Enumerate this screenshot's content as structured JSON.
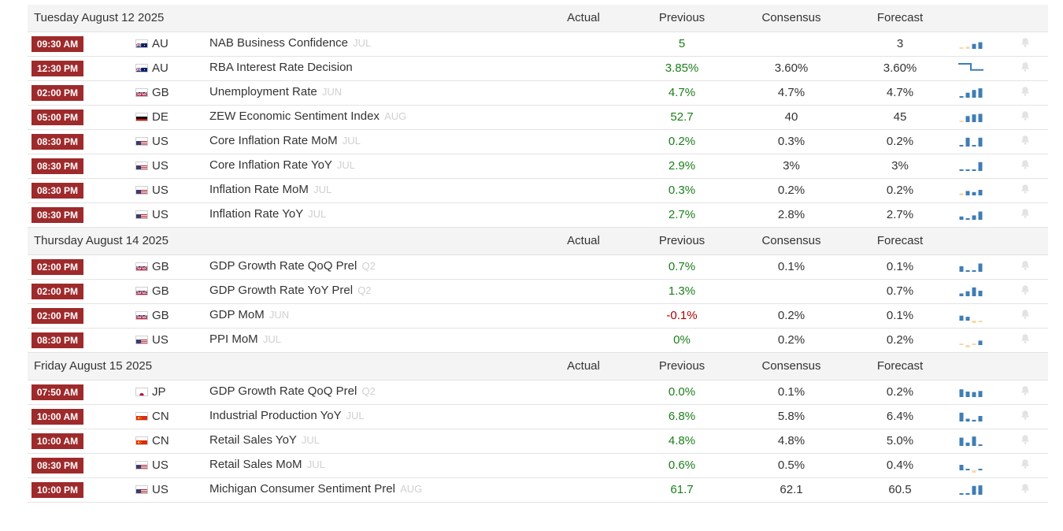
{
  "columns": {
    "actual": "Actual",
    "previous": "Previous",
    "consensus": "Consensus",
    "forecast": "Forecast"
  },
  "colors": {
    "time_badge": "#9e2a2b",
    "positive": "#1a7f1a",
    "negative": "#b00000",
    "bar": "#3f7db5",
    "bar_light": "#f5d9a8"
  },
  "groups": [
    {
      "date": "Tuesday August 12 2025",
      "events": [
        {
          "time": "09:30 AM",
          "flag": "AU",
          "country": "AU",
          "event": "NAB Business Confidence",
          "reference": "JUL",
          "actual": "",
          "previous": "5",
          "previous_sign": "pos",
          "consensus": "",
          "forecast": "3",
          "spark": [
            0.12,
            0.2,
            0.45,
            0.6
          ],
          "spark_colors": [
            "l",
            "l",
            "b",
            "b"
          ],
          "spark_type": "bars"
        },
        {
          "time": "12:30 PM",
          "flag": "AU",
          "country": "AU",
          "event": "RBA Interest Rate Decision",
          "reference": "",
          "actual": "",
          "previous": "3.85%",
          "previous_sign": "pos",
          "consensus": "3.60%",
          "forecast": "3.60%",
          "spark": [
            1,
            1,
            0.35,
            0.35
          ],
          "spark_colors": [
            "b",
            "b",
            "b",
            "b"
          ],
          "spark_type": "step"
        },
        {
          "time": "02:00 PM",
          "flag": "GB",
          "country": "GB",
          "event": "Unemployment Rate",
          "reference": "JUN",
          "actual": "",
          "previous": "4.7%",
          "previous_sign": "pos",
          "consensus": "4.7%",
          "forecast": "4.7%",
          "spark": [
            0.12,
            0.45,
            0.7,
            0.85
          ],
          "spark_colors": [
            "b",
            "b",
            "b",
            "b"
          ],
          "spark_type": "bars"
        },
        {
          "time": "05:00 PM",
          "flag": "DE",
          "country": "DE",
          "event": "ZEW Economic Sentiment Index",
          "reference": "AUG",
          "actual": "",
          "previous": "52.7",
          "previous_sign": "pos",
          "consensus": "40",
          "forecast": "45",
          "spark": [
            0.12,
            0.55,
            0.7,
            0.75
          ],
          "spark_colors": [
            "l",
            "b",
            "b",
            "b"
          ],
          "spark_type": "bars"
        },
        {
          "time": "08:30 PM",
          "flag": "US",
          "country": "US",
          "event": "Core Inflation Rate MoM",
          "reference": "JUL",
          "actual": "",
          "previous": "0.2%",
          "previous_sign": "pos",
          "consensus": "0.3%",
          "forecast": "0.2%",
          "spark": [
            0.1,
            0.8,
            0.1,
            0.8
          ],
          "spark_colors": [
            "b",
            "b",
            "b",
            "b"
          ],
          "spark_type": "bars"
        },
        {
          "time": "08:30 PM",
          "flag": "US",
          "country": "US",
          "event": "Core Inflation Rate YoY",
          "reference": "JUL",
          "actual": "",
          "previous": "2.9%",
          "previous_sign": "pos",
          "consensus": "3%",
          "forecast": "3%",
          "spark": [
            0.08,
            0.08,
            0.08,
            0.8
          ],
          "spark_colors": [
            "b",
            "b",
            "b",
            "b"
          ],
          "spark_type": "bars"
        },
        {
          "time": "08:30 PM",
          "flag": "US",
          "country": "US",
          "event": "Inflation Rate MoM",
          "reference": "JUL",
          "actual": "",
          "previous": "0.3%",
          "previous_sign": "pos",
          "consensus": "0.2%",
          "forecast": "0.2%",
          "spark": [
            0.2,
            0.4,
            0.3,
            0.5
          ],
          "spark_colors": [
            "l",
            "b",
            "b",
            "b"
          ],
          "spark_type": "bars"
        },
        {
          "time": "08:30 PM",
          "flag": "US",
          "country": "US",
          "event": "Inflation Rate YoY",
          "reference": "JUL",
          "actual": "",
          "previous": "2.7%",
          "previous_sign": "pos",
          "consensus": "2.8%",
          "forecast": "2.7%",
          "spark": [
            0.3,
            0.15,
            0.4,
            0.75
          ],
          "spark_colors": [
            "b",
            "b",
            "b",
            "b"
          ],
          "spark_type": "bars"
        }
      ]
    },
    {
      "date": "Thursday August 14 2025",
      "events": [
        {
          "time": "02:00 PM",
          "flag": "GB",
          "country": "GB",
          "event": "GDP Growth Rate QoQ Prel",
          "reference": "Q2",
          "actual": "",
          "previous": "0.7%",
          "previous_sign": "pos",
          "consensus": "0.1%",
          "forecast": "0.1%",
          "spark": [
            0.5,
            0.0,
            0.1,
            0.75
          ],
          "spark_colors": [
            "b",
            "b",
            "b",
            "b"
          ],
          "spark_type": "bars"
        },
        {
          "time": "02:00 PM",
          "flag": "GB",
          "country": "GB",
          "event": "GDP Growth Rate YoY Prel",
          "reference": "Q2",
          "actual": "",
          "previous": "1.3%",
          "previous_sign": "pos",
          "consensus": "",
          "forecast": "0.7%",
          "spark": [
            0.25,
            0.45,
            0.8,
            0.5
          ],
          "spark_colors": [
            "b",
            "b",
            "b",
            "b"
          ],
          "spark_type": "bars"
        },
        {
          "time": "02:00 PM",
          "flag": "GB",
          "country": "GB",
          "event": "GDP MoM",
          "reference": "JUN",
          "actual": "",
          "previous": "-0.1%",
          "previous_sign": "neg",
          "consensus": "0.2%",
          "forecast": "0.1%",
          "spark": [
            0.45,
            0.35,
            -0.3,
            -0.1
          ],
          "spark_colors": [
            "b",
            "b",
            "l",
            "l"
          ],
          "spark_type": "bars"
        },
        {
          "time": "08:30 PM",
          "flag": "US",
          "country": "US",
          "event": "PPI MoM",
          "reference": "JUL",
          "actual": "",
          "previous": "0%",
          "previous_sign": "pos",
          "consensus": "0.2%",
          "forecast": "0.2%",
          "spark": [
            0.05,
            -0.35,
            0.0,
            0.4
          ],
          "spark_colors": [
            "l",
            "l",
            "l",
            "b"
          ],
          "spark_type": "bars"
        }
      ]
    },
    {
      "date": "Friday August 15 2025",
      "events": [
        {
          "time": "07:50 AM",
          "flag": "JP",
          "country": "JP",
          "event": "GDP Growth Rate QoQ Prel",
          "reference": "Q2",
          "actual": "",
          "previous": "0.0%",
          "previous_sign": "pos",
          "consensus": "0.1%",
          "forecast": "0.2%",
          "spark": [
            0.7,
            0.5,
            0.45,
            0.55
          ],
          "spark_colors": [
            "b",
            "b",
            "b",
            "b"
          ],
          "spark_type": "bars"
        },
        {
          "time": "10:00 AM",
          "flag": "CN",
          "country": "CN",
          "event": "Industrial Production YoY",
          "reference": "JUL",
          "actual": "",
          "previous": "6.8%",
          "previous_sign": "pos",
          "consensus": "5.8%",
          "forecast": "6.4%",
          "spark": [
            0.8,
            0.25,
            0.15,
            0.5
          ],
          "spark_colors": [
            "b",
            "b",
            "b",
            "b"
          ],
          "spark_type": "bars"
        },
        {
          "time": "10:00 AM",
          "flag": "CN",
          "country": "CN",
          "event": "Retail Sales YoY",
          "reference": "JUL",
          "actual": "",
          "previous": "4.8%",
          "previous_sign": "pos",
          "consensus": "4.8%",
          "forecast": "5.0%",
          "spark": [
            0.75,
            0.3,
            0.85,
            0.08
          ],
          "spark_colors": [
            "b",
            "b",
            "b",
            "b"
          ],
          "spark_type": "bars"
        },
        {
          "time": "08:30 PM",
          "flag": "US",
          "country": "US",
          "event": "Retail Sales MoM",
          "reference": "JUL",
          "actual": "",
          "previous": "0.6%",
          "previous_sign": "pos",
          "consensus": "0.5%",
          "forecast": "0.4%",
          "spark": [
            0.5,
            0.08,
            -0.4,
            0.12
          ],
          "spark_colors": [
            "b",
            "b",
            "l",
            "b"
          ],
          "spark_type": "bars"
        },
        {
          "time": "10:00 PM",
          "flag": "US",
          "country": "US",
          "event": "Michigan Consumer Sentiment Prel",
          "reference": "AUG",
          "actual": "",
          "previous": "61.7",
          "previous_sign": "pos",
          "consensus": "62.1",
          "forecast": "60.5",
          "spark": [
            0.08,
            0.15,
            0.8,
            0.85
          ],
          "spark_colors": [
            "b",
            "b",
            "b",
            "b"
          ],
          "spark_type": "bars"
        }
      ]
    }
  ]
}
